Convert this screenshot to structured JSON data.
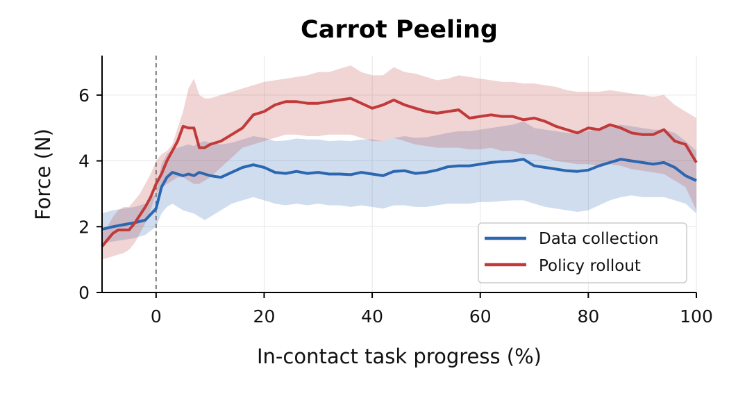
{
  "chart_data": {
    "type": "line",
    "title": "Carrot Peeling",
    "xlabel": "In-contact task progress (%)",
    "ylabel": "Force (N)",
    "xlim": [
      -10,
      100
    ],
    "ylim": [
      0,
      7.2
    ],
    "xticks": [
      0,
      20,
      40,
      60,
      80,
      100
    ],
    "yticks": [
      0,
      2,
      4,
      6
    ],
    "xtick_labels": [
      "0",
      "20",
      "40",
      "60",
      "80",
      "100"
    ],
    "ytick_labels": [
      "0",
      "2",
      "4",
      "6"
    ],
    "vline_x": 0,
    "grid": true,
    "legend_placement": "lower-right",
    "colors": {
      "data_collection": "#2b66b0",
      "policy_rollout": "#c13a3a",
      "vline": "#777777"
    },
    "series": [
      {
        "name": "Data collection",
        "color": "#2b66b0",
        "x": [
          -10,
          -8,
          -6,
          -4,
          -2,
          0,
          1,
          2,
          3,
          4,
          5,
          6,
          7,
          8,
          9,
          10,
          12,
          14,
          16,
          18,
          20,
          22,
          24,
          26,
          28,
          30,
          32,
          34,
          36,
          38,
          40,
          42,
          44,
          46,
          48,
          50,
          52,
          54,
          56,
          58,
          60,
          62,
          64,
          66,
          68,
          70,
          72,
          74,
          76,
          78,
          80,
          82,
          84,
          86,
          88,
          90,
          92,
          94,
          96,
          98,
          100
        ],
        "mean": [
          1.92,
          2.0,
          2.06,
          2.12,
          2.2,
          2.55,
          3.2,
          3.5,
          3.65,
          3.6,
          3.55,
          3.6,
          3.55,
          3.65,
          3.6,
          3.55,
          3.5,
          3.65,
          3.8,
          3.88,
          3.8,
          3.65,
          3.62,
          3.68,
          3.62,
          3.65,
          3.6,
          3.6,
          3.58,
          3.65,
          3.6,
          3.55,
          3.68,
          3.7,
          3.62,
          3.65,
          3.72,
          3.82,
          3.85,
          3.85,
          3.9,
          3.95,
          3.98,
          4.0,
          4.05,
          3.85,
          3.8,
          3.75,
          3.7,
          3.68,
          3.72,
          3.85,
          3.95,
          4.05,
          4.0,
          3.95,
          3.9,
          3.95,
          3.8,
          3.55,
          3.4
        ],
        "lower": [
          1.5,
          1.55,
          1.6,
          1.65,
          1.75,
          2.0,
          2.4,
          2.6,
          2.7,
          2.6,
          2.5,
          2.45,
          2.4,
          2.3,
          2.2,
          2.3,
          2.5,
          2.7,
          2.8,
          2.9,
          2.8,
          2.7,
          2.65,
          2.7,
          2.65,
          2.7,
          2.65,
          2.65,
          2.6,
          2.65,
          2.6,
          2.55,
          2.65,
          2.65,
          2.6,
          2.6,
          2.65,
          2.7,
          2.7,
          2.7,
          2.75,
          2.75,
          2.78,
          2.8,
          2.8,
          2.7,
          2.6,
          2.55,
          2.5,
          2.45,
          2.5,
          2.65,
          2.8,
          2.9,
          2.95,
          2.9,
          2.9,
          2.9,
          2.8,
          2.7,
          2.4
        ],
        "upper": [
          2.4,
          2.5,
          2.55,
          2.6,
          2.7,
          3.0,
          3.9,
          4.2,
          4.35,
          4.4,
          4.45,
          4.5,
          4.45,
          4.55,
          4.6,
          4.55,
          4.5,
          4.55,
          4.65,
          4.75,
          4.7,
          4.6,
          4.62,
          4.68,
          4.65,
          4.65,
          4.6,
          4.62,
          4.6,
          4.65,
          4.65,
          4.6,
          4.7,
          4.75,
          4.7,
          4.72,
          4.78,
          4.85,
          4.9,
          4.9,
          4.95,
          5.0,
          5.05,
          5.1,
          5.2,
          5.0,
          4.95,
          4.9,
          4.85,
          4.85,
          4.9,
          5.0,
          5.05,
          5.1,
          5.05,
          5.0,
          4.95,
          4.95,
          4.85,
          4.6,
          4.3
        ]
      },
      {
        "name": "Policy rollout",
        "color": "#c13a3a",
        "x": [
          -10,
          -9,
          -8,
          -7,
          -6,
          -5,
          -4,
          -3,
          -2,
          -1,
          0,
          1,
          2,
          3,
          4,
          5,
          6,
          7,
          8,
          9,
          10,
          12,
          14,
          16,
          18,
          20,
          22,
          24,
          26,
          28,
          30,
          32,
          34,
          36,
          38,
          40,
          42,
          44,
          46,
          48,
          50,
          52,
          54,
          56,
          58,
          60,
          62,
          64,
          66,
          68,
          70,
          72,
          74,
          76,
          78,
          80,
          82,
          84,
          86,
          88,
          90,
          92,
          94,
          96,
          98,
          100
        ],
        "mean": [
          1.4,
          1.6,
          1.8,
          1.9,
          1.9,
          1.9,
          2.1,
          2.35,
          2.6,
          2.9,
          3.3,
          3.6,
          4.0,
          4.3,
          4.6,
          5.05,
          5.0,
          5.0,
          4.4,
          4.4,
          4.5,
          4.6,
          4.8,
          5.0,
          5.4,
          5.5,
          5.7,
          5.8,
          5.8,
          5.75,
          5.75,
          5.8,
          5.85,
          5.9,
          5.75,
          5.6,
          5.7,
          5.85,
          5.7,
          5.6,
          5.5,
          5.45,
          5.5,
          5.55,
          5.3,
          5.35,
          5.4,
          5.35,
          5.35,
          5.25,
          5.3,
          5.2,
          5.05,
          4.95,
          4.85,
          5.0,
          4.95,
          5.1,
          5.0,
          4.85,
          4.8,
          4.8,
          4.95,
          4.6,
          4.5,
          3.95
        ],
        "lower": [
          1.0,
          1.05,
          1.1,
          1.15,
          1.2,
          1.3,
          1.5,
          1.8,
          2.1,
          2.5,
          3.0,
          3.2,
          3.3,
          3.4,
          3.5,
          3.5,
          3.4,
          3.3,
          3.3,
          3.4,
          3.5,
          3.8,
          4.1,
          4.4,
          4.5,
          4.6,
          4.7,
          4.8,
          4.8,
          4.75,
          4.75,
          4.8,
          4.8,
          4.8,
          4.7,
          4.6,
          4.6,
          4.7,
          4.6,
          4.5,
          4.45,
          4.4,
          4.4,
          4.4,
          4.35,
          4.35,
          4.4,
          4.3,
          4.3,
          4.2,
          4.2,
          4.1,
          4.0,
          3.95,
          3.9,
          3.9,
          3.85,
          3.9,
          3.85,
          3.75,
          3.7,
          3.65,
          3.6,
          3.4,
          3.2,
          2.5
        ],
        "upper": [
          1.8,
          2.0,
          2.3,
          2.5,
          2.6,
          2.6,
          2.8,
          3.0,
          3.3,
          3.6,
          4.0,
          4.2,
          4.3,
          4.5,
          5.0,
          5.5,
          6.2,
          6.5,
          6.0,
          5.9,
          5.9,
          6.0,
          6.1,
          6.2,
          6.3,
          6.4,
          6.45,
          6.5,
          6.55,
          6.6,
          6.7,
          6.7,
          6.8,
          6.9,
          6.7,
          6.6,
          6.6,
          6.85,
          6.7,
          6.65,
          6.55,
          6.45,
          6.5,
          6.6,
          6.55,
          6.5,
          6.45,
          6.4,
          6.4,
          6.35,
          6.35,
          6.3,
          6.25,
          6.15,
          6.1,
          6.1,
          6.1,
          6.15,
          6.1,
          6.05,
          6.0,
          5.95,
          6.0,
          5.7,
          5.5,
          5.3
        ]
      }
    ]
  }
}
